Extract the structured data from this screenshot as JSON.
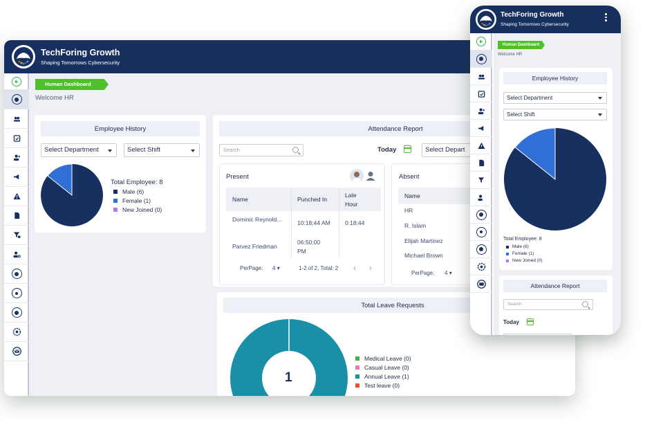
{
  "brand": {
    "name": "TechForing Growth",
    "tagline": "Shaping Tomorrows Cybersecurity"
  },
  "breadcrumb": "Human Dashboard",
  "welcome": "Welcome HR",
  "employee_history": {
    "title": "Employee History",
    "department_select": "Select Department",
    "shift_select": "Select Shift",
    "total_label": "Total Employee: 8",
    "legend": [
      {
        "label": "Male (6)",
        "color": "#17305f"
      },
      {
        "label": "Female (1)",
        "color": "#2f6fd6"
      },
      {
        "label": "New Joined (0)",
        "color": "#b07be0"
      }
    ],
    "pie": {
      "male": 6,
      "female": 1,
      "new_joined": 0
    }
  },
  "attendance": {
    "title": "Attendance Report",
    "search_placeholder": "Search",
    "today_label": "Today",
    "department_select": "Select Depart",
    "present": {
      "title": "Present",
      "columns": [
        "Name",
        "Punched In",
        "Late Hour"
      ],
      "rows": [
        {
          "name": "Dominic Reynold...",
          "punched_in": "10:18:44 AM",
          "late": "0:18:44"
        },
        {
          "name": "Parvez Friedman",
          "punched_in": "06:50:00 PM",
          "late": ""
        }
      ],
      "per_page_label": "PerPage:",
      "per_page_value": "4",
      "pagination": "1-2 of 2, Total: 2",
      "prev": "‹",
      "next": "›"
    },
    "absent": {
      "title": "Absent",
      "column": "Name",
      "rows": [
        "HR",
        "R. Islam",
        "Elijah Martinez",
        "Michael Brown"
      ],
      "per_page_label": "PerPage:",
      "per_page_value": "4"
    }
  },
  "leave": {
    "title": "Total Leave Requests",
    "center_value": "1",
    "legend": [
      {
        "label": "Medical Leave (0)",
        "color": "#3bb54a"
      },
      {
        "label": "Casual Leave (0)",
        "color": "#e879b8"
      },
      {
        "label": "Annual Leave (1)",
        "color": "#1a8fa8"
      },
      {
        "label": "Test leave (0)",
        "color": "#e5532d"
      }
    ]
  },
  "mobile": {
    "employee_title": "Employee History",
    "department_select": "Select Department",
    "shift_select": "Select Shift",
    "total_label": "Total Employee: 8",
    "legend": [
      "Male (6)",
      "Female (1)",
      "New Joined (0)"
    ],
    "attendance_title": "Attendance Report",
    "search_placeholder": "Search",
    "today_label": "Today"
  },
  "icons": [
    "back-arrow-icon",
    "dashboard-icon",
    "users-icon",
    "attendance-icon",
    "add-user-icon",
    "megaphone-icon",
    "warning-icon",
    "document-icon",
    "filter-icon",
    "user-settings-icon",
    "award-icon",
    "badge-icon",
    "profile-icon",
    "gear-icon",
    "mail-icon"
  ]
}
